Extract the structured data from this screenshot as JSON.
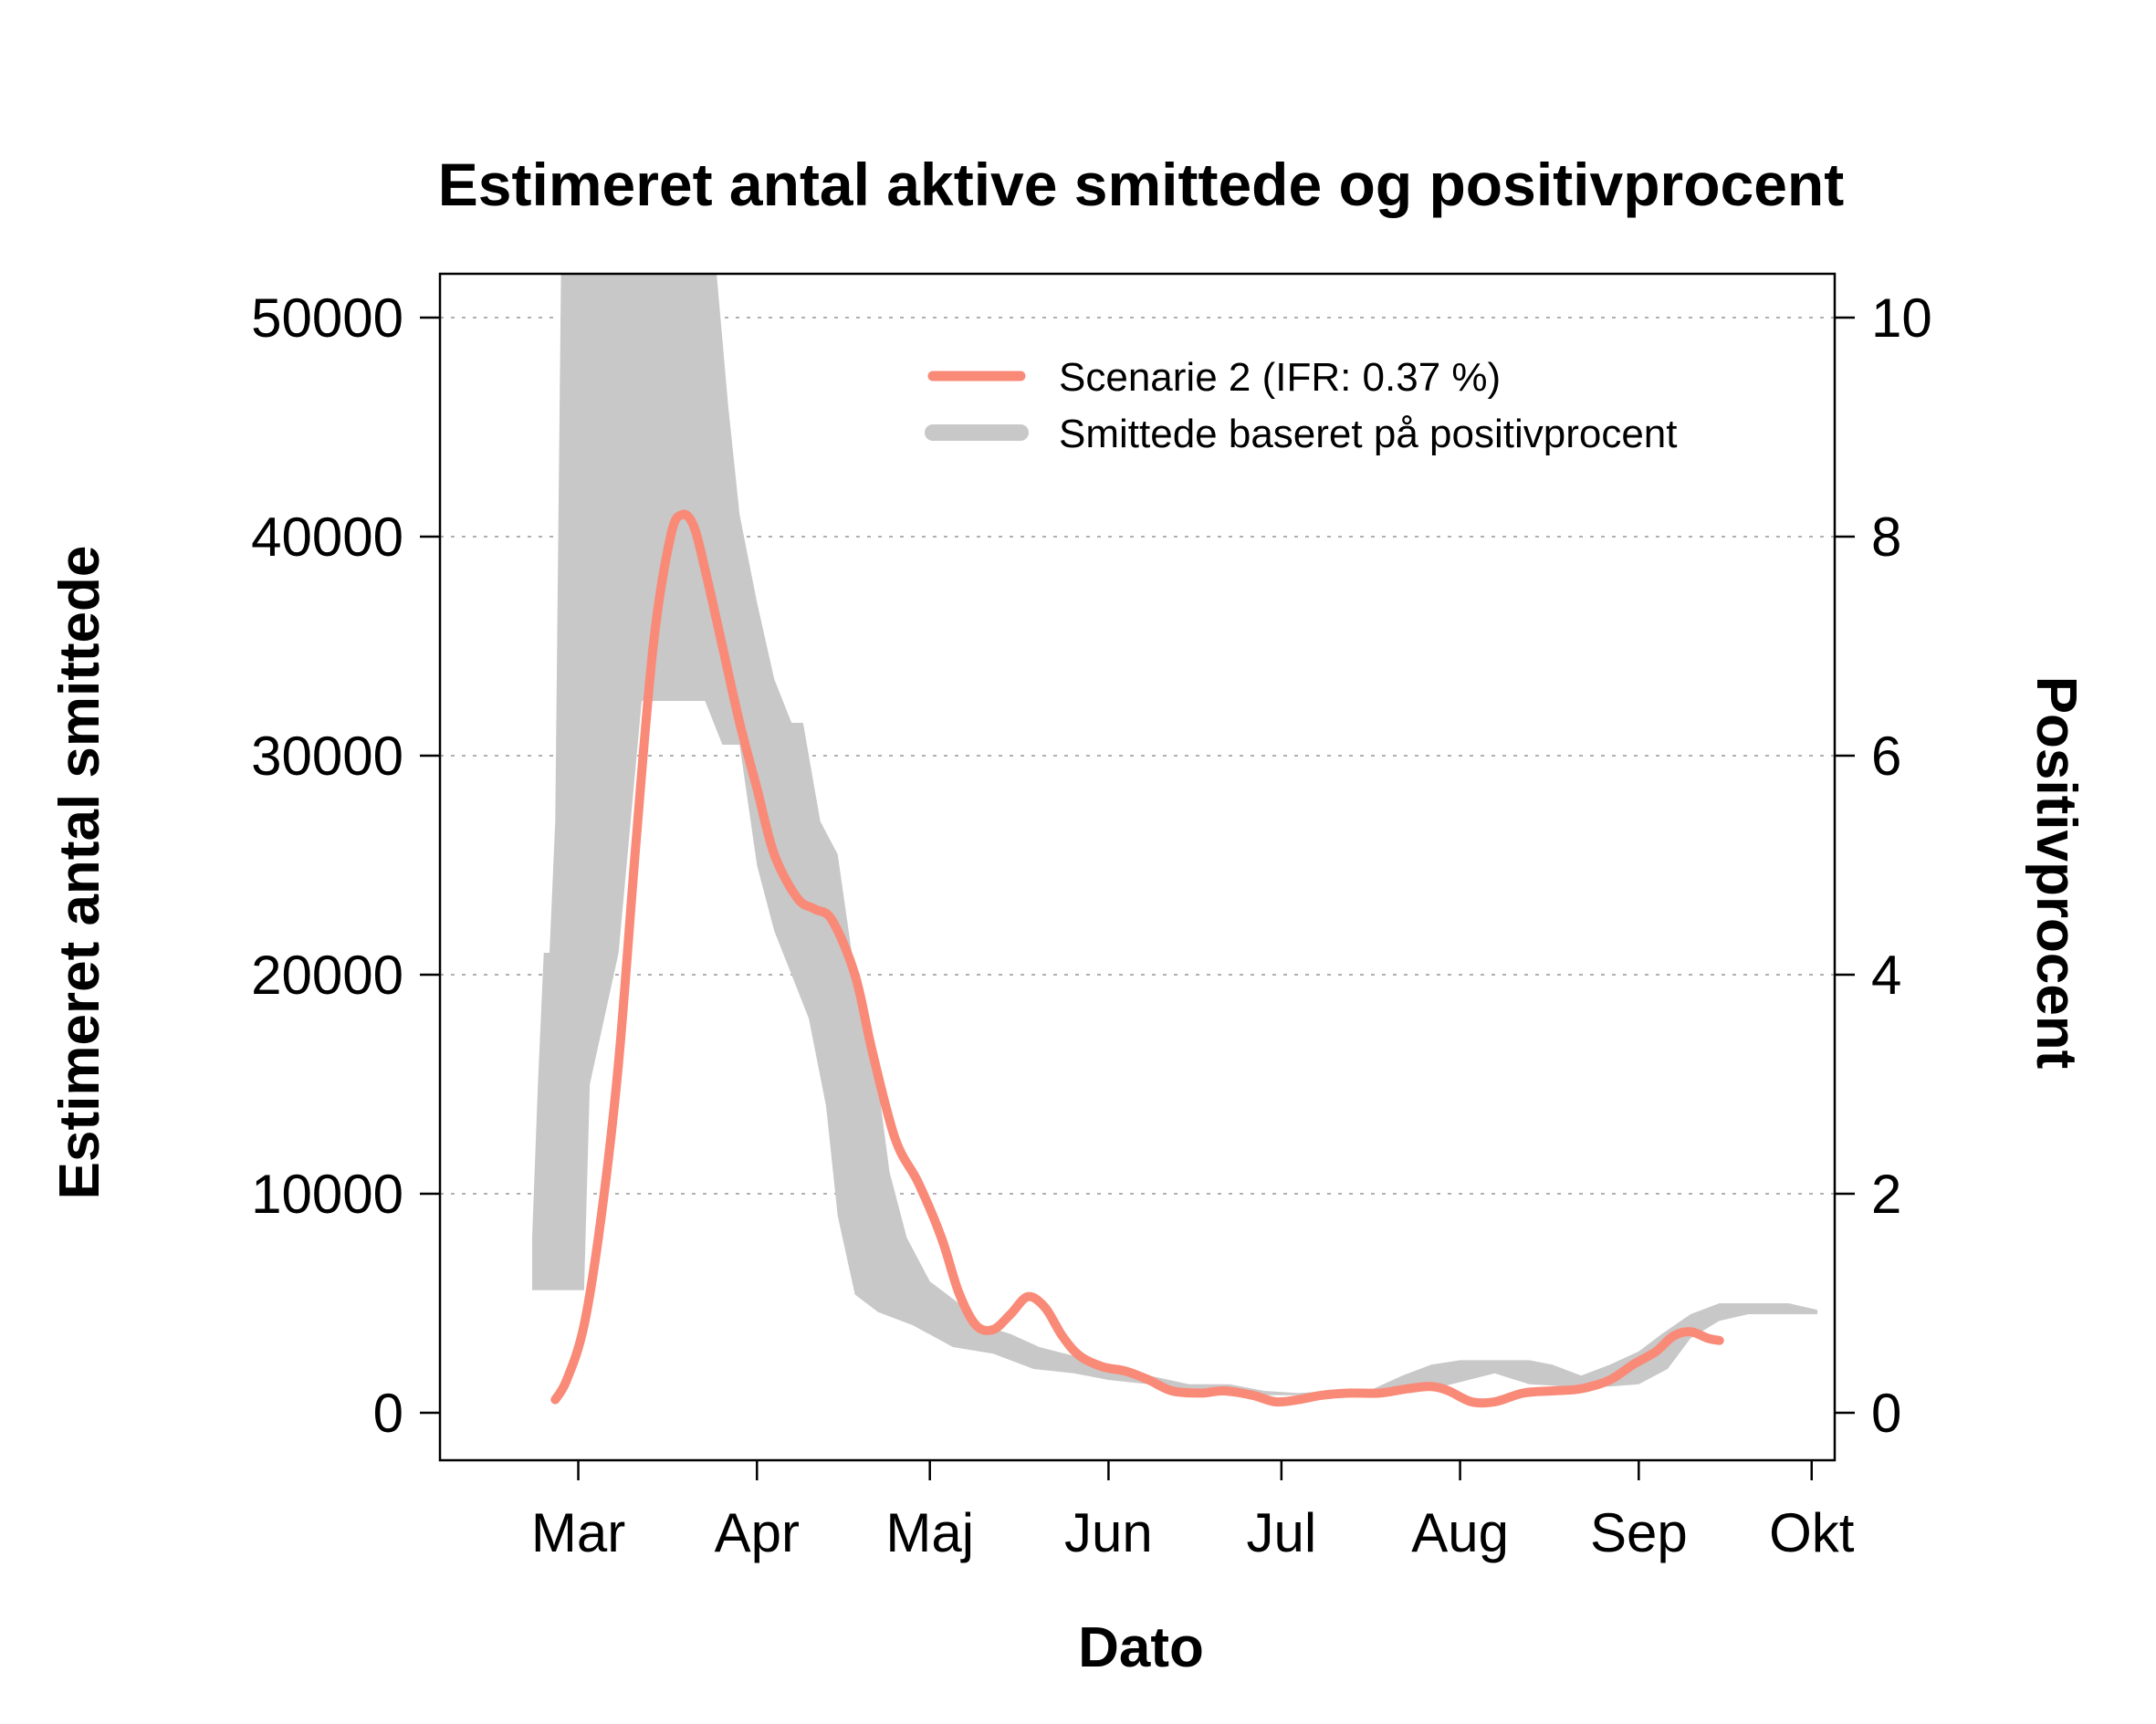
{
  "chart_data": {
    "type": "line",
    "title": "Estimeret antal aktive smittede og positivprocent",
    "xlabel": "Dato",
    "ylabel_left": "Estimeret antal smittede",
    "ylabel_right": "Positivprocent",
    "ylim_left": [
      0,
      52000
    ],
    "ylim_right": [
      0,
      10.4
    ],
    "yticks_left": [
      0,
      10000,
      20000,
      30000,
      40000,
      50000
    ],
    "yticks_left_labels": [
      "0",
      "10000",
      "20000",
      "30000",
      "40000",
      "50000"
    ],
    "yticks_right": [
      0,
      2,
      4,
      6,
      8,
      10
    ],
    "yticks_right_labels": [
      "0",
      "2",
      "4",
      "6",
      "8",
      "10"
    ],
    "xticks": [
      {
        "label": "Mar",
        "date": "2020-03-01"
      },
      {
        "label": "Apr",
        "date": "2020-04-01"
      },
      {
        "label": "Maj",
        "date": "2020-05-01"
      },
      {
        "label": "Jun",
        "date": "2020-06-01"
      },
      {
        "label": "Jul",
        "date": "2020-07-01"
      },
      {
        "label": "Aug",
        "date": "2020-08-01"
      },
      {
        "label": "Sep",
        "date": "2020-09-01"
      },
      {
        "label": "Okt",
        "date": "2020-10-01"
      }
    ],
    "xlim": [
      "2020-02-06",
      "2020-10-05"
    ],
    "grid": "horizontal dotted",
    "legend_position": "top-right",
    "colors": {
      "scenario": "#f98a78",
      "band": "#c8c8c8",
      "grid": "#b0b0b0"
    },
    "series": [
      {
        "name": "Scenarie 2 (IFR: 0.37 %)",
        "kind": "line",
        "points": [
          [
            "2020-02-26",
            600
          ],
          [
            "2020-02-28",
            1500
          ],
          [
            "2020-03-02",
            4000
          ],
          [
            "2020-03-05",
            9000
          ],
          [
            "2020-03-08",
            16000
          ],
          [
            "2020-03-11",
            26000
          ],
          [
            "2020-03-14",
            35000
          ],
          [
            "2020-03-17",
            40000
          ],
          [
            "2020-03-19",
            41000
          ],
          [
            "2020-03-21",
            40500
          ],
          [
            "2020-03-23",
            38500
          ],
          [
            "2020-03-26",
            35000
          ],
          [
            "2020-03-29",
            31500
          ],
          [
            "2020-04-01",
            28500
          ],
          [
            "2020-04-04",
            25500
          ],
          [
            "2020-04-08",
            23500
          ],
          [
            "2020-04-11",
            23000
          ],
          [
            "2020-04-14",
            22500
          ],
          [
            "2020-04-18",
            20000
          ],
          [
            "2020-04-21",
            16500
          ],
          [
            "2020-04-25",
            12500
          ],
          [
            "2020-04-29",
            10500
          ],
          [
            "2020-05-03",
            8000
          ],
          [
            "2020-05-06",
            5500
          ],
          [
            "2020-05-09",
            4000
          ],
          [
            "2020-05-12",
            3800
          ],
          [
            "2020-05-15",
            4500
          ],
          [
            "2020-05-18",
            5300
          ],
          [
            "2020-05-21",
            4800
          ],
          [
            "2020-05-24",
            3500
          ],
          [
            "2020-05-27",
            2600
          ],
          [
            "2020-05-31",
            2100
          ],
          [
            "2020-06-04",
            1900
          ],
          [
            "2020-06-08",
            1500
          ],
          [
            "2020-06-12",
            1000
          ],
          [
            "2020-06-17",
            900
          ],
          [
            "2020-06-21",
            1000
          ],
          [
            "2020-06-26",
            800
          ],
          [
            "2020-06-30",
            500
          ],
          [
            "2020-07-04",
            600
          ],
          [
            "2020-07-08",
            800
          ],
          [
            "2020-07-13",
            900
          ],
          [
            "2020-07-18",
            900
          ],
          [
            "2020-07-23",
            1100
          ],
          [
            "2020-07-27",
            1200
          ],
          [
            "2020-07-30",
            1000
          ],
          [
            "2020-08-03",
            500
          ],
          [
            "2020-08-07",
            500
          ],
          [
            "2020-08-12",
            900
          ],
          [
            "2020-08-17",
            1000
          ],
          [
            "2020-08-22",
            1100
          ],
          [
            "2020-08-27",
            1500
          ],
          [
            "2020-08-31",
            2200
          ],
          [
            "2020-09-04",
            2800
          ],
          [
            "2020-09-07",
            3500
          ],
          [
            "2020-09-10",
            3700
          ],
          [
            "2020-09-13",
            3400
          ],
          [
            "2020-09-15",
            3300
          ]
        ]
      },
      {
        "name": "Smittede baseret på positivprocent",
        "kind": "band",
        "upper": [
          [
            "2020-02-22",
            8000
          ],
          [
            "2020-02-23",
            15000
          ],
          [
            "2020-02-24",
            21000
          ],
          [
            "2020-02-25",
            21000
          ],
          [
            "2020-02-26",
            27000
          ],
          [
            "2020-02-27",
            52000
          ],
          [
            "2020-03-01",
            52000
          ],
          [
            "2020-03-20",
            52000
          ],
          [
            "2020-03-25",
            52000
          ],
          [
            "2020-03-27",
            46000
          ],
          [
            "2020-03-29",
            41000
          ],
          [
            "2020-04-01",
            37000
          ],
          [
            "2020-04-04",
            33500
          ],
          [
            "2020-04-07",
            31500
          ],
          [
            "2020-04-09",
            31500
          ],
          [
            "2020-04-12",
            27000
          ],
          [
            "2020-04-15",
            25500
          ],
          [
            "2020-04-18",
            20000
          ],
          [
            "2020-04-21",
            17000
          ],
          [
            "2020-04-24",
            11000
          ],
          [
            "2020-04-27",
            8000
          ],
          [
            "2020-05-01",
            6000
          ],
          [
            "2020-05-06",
            5000
          ],
          [
            "2020-05-10",
            4000
          ],
          [
            "2020-05-15",
            3600
          ],
          [
            "2020-05-20",
            3000
          ],
          [
            "2020-05-26",
            2600
          ],
          [
            "2020-06-01",
            2200
          ],
          [
            "2020-06-08",
            1700
          ],
          [
            "2020-06-15",
            1300
          ],
          [
            "2020-06-22",
            1300
          ],
          [
            "2020-06-28",
            1000
          ],
          [
            "2020-07-04",
            900
          ],
          [
            "2020-07-10",
            1000
          ],
          [
            "2020-07-17",
            1100
          ],
          [
            "2020-07-22",
            1700
          ],
          [
            "2020-07-27",
            2200
          ],
          [
            "2020-08-01",
            2400
          ],
          [
            "2020-08-07",
            2400
          ],
          [
            "2020-08-13",
            2400
          ],
          [
            "2020-08-17",
            2200
          ],
          [
            "2020-08-22",
            1700
          ],
          [
            "2020-08-27",
            2200
          ],
          [
            "2020-09-01",
            2800
          ],
          [
            "2020-09-05",
            3600
          ],
          [
            "2020-09-10",
            4500
          ],
          [
            "2020-09-15",
            5000
          ],
          [
            "2020-09-21",
            5000
          ],
          [
            "2020-09-27",
            5000
          ],
          [
            "2020-10-02",
            4700
          ]
        ],
        "lower": [
          [
            "2020-02-22",
            5600
          ],
          [
            "2020-03-02",
            5600
          ],
          [
            "2020-03-03",
            15000
          ],
          [
            "2020-03-08",
            21000
          ],
          [
            "2020-03-12",
            32500
          ],
          [
            "2020-03-23",
            32500
          ],
          [
            "2020-03-26",
            30500
          ],
          [
            "2020-03-29",
            30500
          ],
          [
            "2020-04-01",
            25000
          ],
          [
            "2020-04-04",
            22000
          ],
          [
            "2020-04-07",
            20000
          ],
          [
            "2020-04-10",
            18000
          ],
          [
            "2020-04-13",
            14000
          ],
          [
            "2020-04-15",
            9000
          ],
          [
            "2020-04-18",
            5400
          ],
          [
            "2020-04-22",
            4600
          ],
          [
            "2020-04-28",
            4000
          ],
          [
            "2020-05-05",
            3000
          ],
          [
            "2020-05-12",
            2700
          ],
          [
            "2020-05-19",
            2000
          ],
          [
            "2020-05-26",
            1800
          ],
          [
            "2020-06-01",
            1500
          ],
          [
            "2020-06-08",
            1300
          ],
          [
            "2020-06-15",
            1000
          ],
          [
            "2020-06-22",
            900
          ],
          [
            "2020-06-28",
            800
          ],
          [
            "2020-07-04",
            800
          ],
          [
            "2020-07-12",
            800
          ],
          [
            "2020-07-19",
            800
          ],
          [
            "2020-07-26",
            1000
          ],
          [
            "2020-08-01",
            1400
          ],
          [
            "2020-08-07",
            1800
          ],
          [
            "2020-08-13",
            1300
          ],
          [
            "2020-08-20",
            1200
          ],
          [
            "2020-08-27",
            1200
          ],
          [
            "2020-09-01",
            1300
          ],
          [
            "2020-09-06",
            2000
          ],
          [
            "2020-09-10",
            3400
          ],
          [
            "2020-09-15",
            4200
          ],
          [
            "2020-09-20",
            4500
          ],
          [
            "2020-09-27",
            4500
          ],
          [
            "2020-10-02",
            4500
          ]
        ]
      }
    ]
  }
}
